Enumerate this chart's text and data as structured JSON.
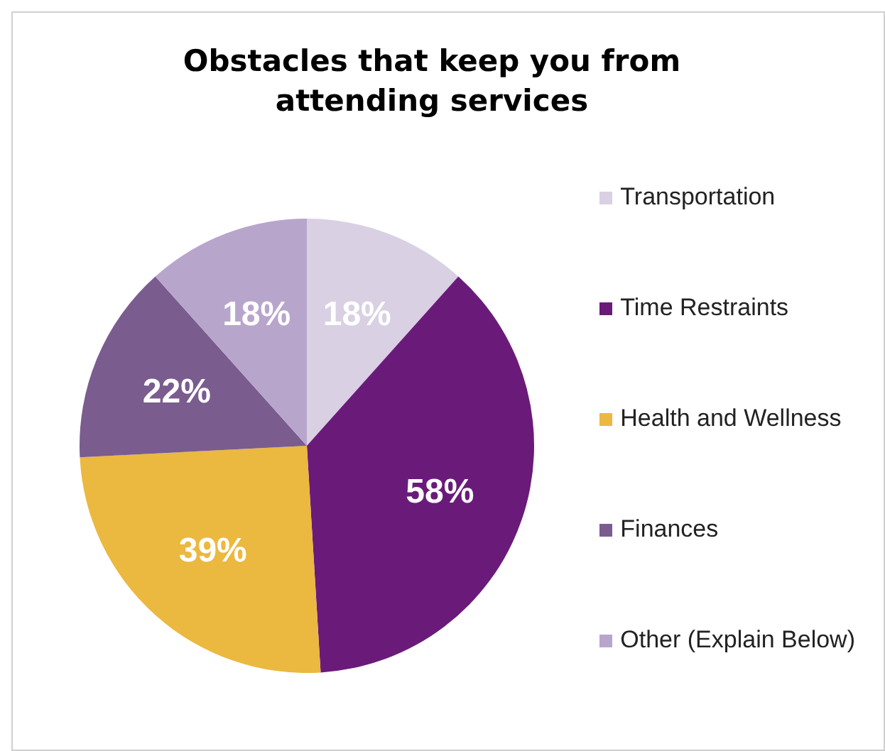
{
  "chart_data": {
    "type": "pie",
    "title": "Obstacles that keep you from attending services",
    "categories": [
      "Transportation",
      "Time Restraints",
      "Health and Wellness",
      "Finances",
      "Other (Explain Below)"
    ],
    "values": [
      18,
      58,
      39,
      22,
      18
    ],
    "value_labels": [
      "18%",
      "58%",
      "39%",
      "22%",
      "18%"
    ],
    "colors": [
      "#d9d0e3",
      "#6a1b7a",
      "#ebb840",
      "#7a5c8f",
      "#b8a5cc"
    ],
    "legend": "right"
  }
}
